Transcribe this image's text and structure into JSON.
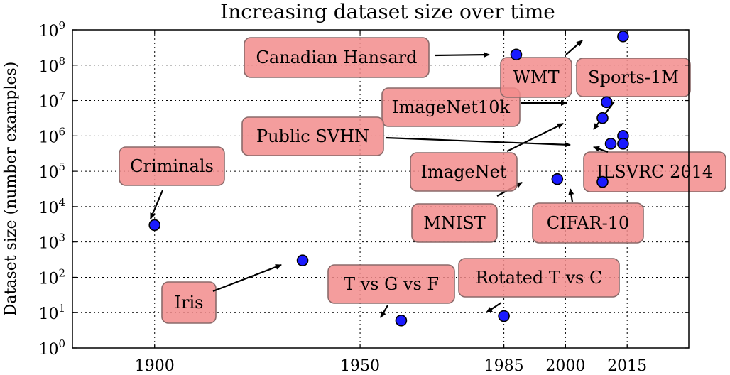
{
  "chart_data": {
    "type": "scatter",
    "title": "Increasing dataset size over time",
    "ylabel": "Dataset size (number examples)",
    "xlabel": "",
    "x_scale": "linear",
    "y_scale": "log",
    "xlim": [
      1880,
      2030
    ],
    "ylim_log10": [
      0,
      9
    ],
    "grid": true,
    "x_ticks": [
      {
        "value": 1900,
        "label": "1900"
      },
      {
        "value": 1950,
        "label": "1950"
      },
      {
        "value": 1985,
        "label": "1985"
      },
      {
        "value": 2000,
        "label": "2000"
      },
      {
        "value": 2015,
        "label": "2015"
      }
    ],
    "y_ticks": [
      {
        "exp": 0,
        "base": "10",
        "sup": "0"
      },
      {
        "exp": 1,
        "base": "10",
        "sup": "1"
      },
      {
        "exp": 2,
        "base": "10",
        "sup": "2"
      },
      {
        "exp": 3,
        "base": "10",
        "sup": "3"
      },
      {
        "exp": 4,
        "base": "10",
        "sup": "4"
      },
      {
        "exp": 5,
        "base": "10",
        "sup": "5"
      },
      {
        "exp": 6,
        "base": "10",
        "sup": "6"
      },
      {
        "exp": 7,
        "base": "10",
        "sup": "7"
      },
      {
        "exp": 8,
        "base": "10",
        "sup": "8"
      },
      {
        "exp": 9,
        "base": "10",
        "sup": "9"
      }
    ],
    "points": [
      {
        "label": "Criminals",
        "year": 1900,
        "size": 3000
      },
      {
        "label": "Iris",
        "year": 1936,
        "size": 300
      },
      {
        "label": "T vs G vs F",
        "year": 1960,
        "size": 6
      },
      {
        "label": "Rotated T vs C",
        "year": 1985,
        "size": 8
      },
      {
        "label": "MNIST",
        "year": 1998,
        "size": 60000
      },
      {
        "label": "Canadian Hansard",
        "year": 1988,
        "size": 200000000
      },
      {
        "label": "CIFAR-10",
        "year": 2009,
        "size": 50000
      },
      {
        "label": "ImageNet",
        "year": 2009,
        "size": 3200000
      },
      {
        "label": "ImageNet10k",
        "year": 2010,
        "size": 9000000
      },
      {
        "label": "Public SVHN",
        "year": 2011,
        "size": 600000
      },
      {
        "label": "WMT",
        "year": 2014,
        "size": 650000000
      },
      {
        "label": "Sports-1M",
        "year": 2014,
        "size": 1000000
      },
      {
        "label": "ILSVRC 2014",
        "year": 2014,
        "size": 600000
      }
    ],
    "colors": {
      "marker_fill": "#1a1aff",
      "marker_edge": "#000000",
      "box_fill": "#f28c8c",
      "box_edge": "#8a6a6a",
      "arrow": "#000000"
    }
  }
}
